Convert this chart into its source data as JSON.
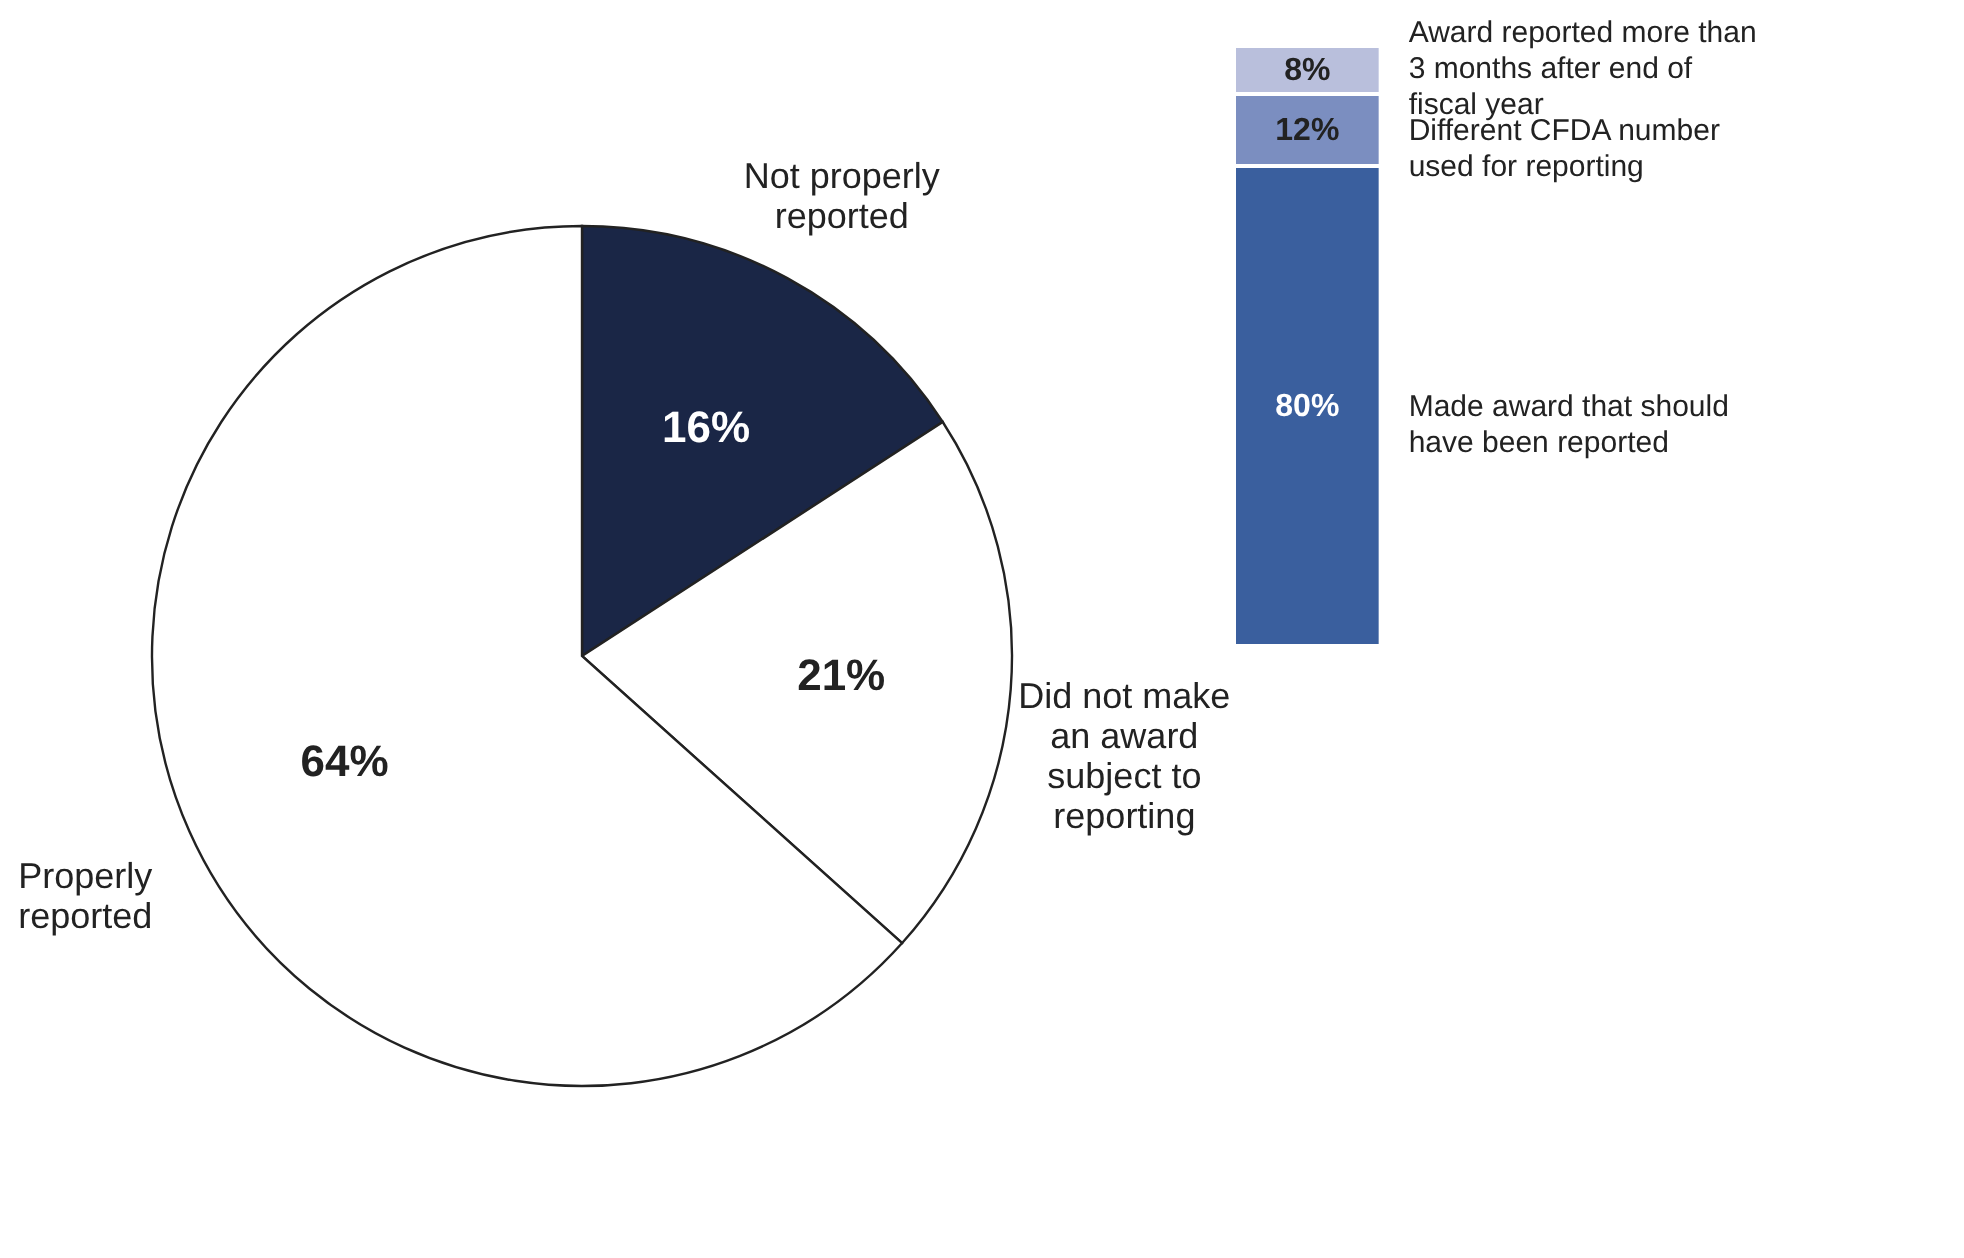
{
  "chart_data": [
    {
      "type": "pie",
      "categories": [
        "Not properly reported",
        "Did not make an award subject to reporting",
        "Properly reported"
      ],
      "values": [
        16,
        21,
        64
      ],
      "colors": [
        "#1a2646",
        "#ffffff",
        "#ffffff"
      ],
      "value_labels": [
        "16%",
        "21%",
        "64%"
      ]
    },
    {
      "type": "bar",
      "stacked": true,
      "categories": [
        null
      ],
      "tick_labels": false,
      "series": [
        {
          "name": "Made award that should have been reported",
          "color": "#3a5f9e",
          "values": [
            80
          ],
          "value_labels": [
            "80%"
          ]
        },
        {
          "name": "Different CFDA number used for reporting",
          "color": "#7b8ec0",
          "values": [
            12
          ],
          "value_labels": [
            "12%"
          ]
        },
        {
          "name": "Award reported more than 3 months after end of fiscal year",
          "color": "#b9bfdc",
          "values": [
            8
          ],
          "value_labels": [
            "8%"
          ]
        }
      ]
    }
  ]
}
